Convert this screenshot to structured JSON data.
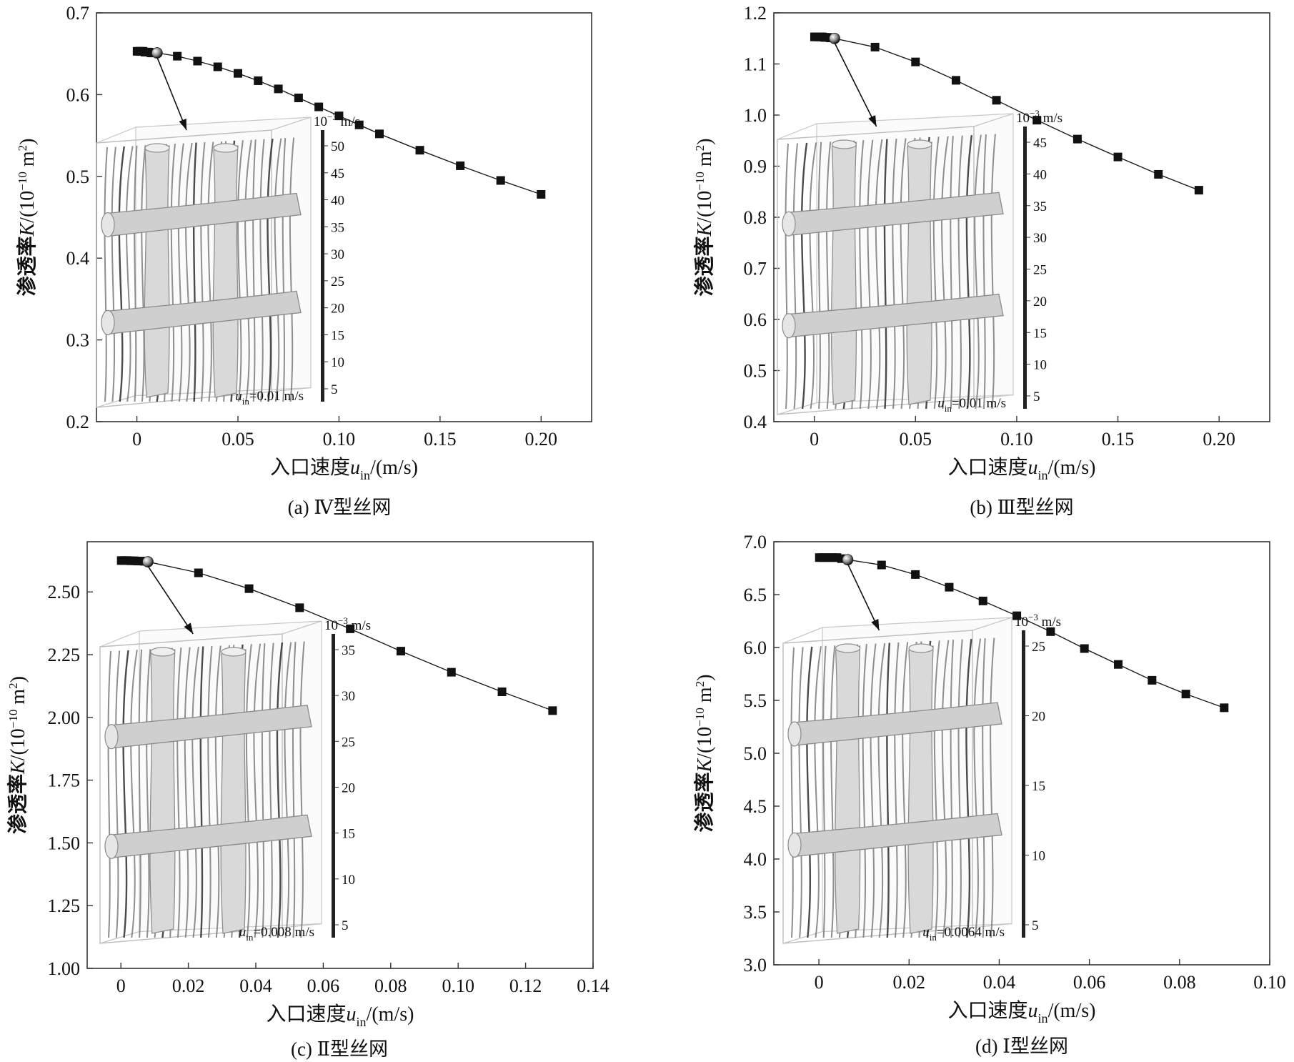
{
  "figure": {
    "colors": {
      "axis": "#333333",
      "line": "#1a1a1a",
      "marker": "#111111",
      "wire": "#b8b8b8",
      "streamline": "#7a7a7a"
    }
  },
  "chart_data": [
    {
      "id": "a",
      "type": "line",
      "caption": "(a) Ⅳ型丝网",
      "xlabel": {
        "main": "入口速度",
        "var": "u",
        "sub": "in",
        "unit": "/(m/s)"
      },
      "ylabel": {
        "main": "渗透率",
        "var": "K",
        "unit": "/(10",
        "exp": "−10",
        "unit2": " m",
        "exp2": "2",
        "close": ")"
      },
      "xlim": [
        -0.02,
        0.225
      ],
      "ylim": [
        0.2,
        0.7
      ],
      "xticks": [
        0,
        0.05,
        0.1,
        0.15,
        0.2
      ],
      "xtick_labels": [
        "0",
        "0.05",
        "0.10",
        "0.15",
        "0.20"
      ],
      "yticks": [
        0.2,
        0.3,
        0.4,
        0.5,
        0.6,
        0.7
      ],
      "ytick_labels": [
        "0.2",
        "0.3",
        "0.4",
        "0.5",
        "0.6",
        "0.7"
      ],
      "x": [
        0.0001,
        0.001,
        0.002,
        0.003,
        0.004,
        0.005,
        0.006,
        0.007,
        0.008,
        0.01,
        0.02,
        0.03,
        0.04,
        0.05,
        0.06,
        0.07,
        0.08,
        0.09,
        0.1,
        0.11,
        0.12,
        0.14,
        0.16,
        0.18,
        0.2
      ],
      "y": [
        0.653,
        0.653,
        0.653,
        0.653,
        0.652,
        0.652,
        0.652,
        0.651,
        0.651,
        0.651,
        0.647,
        0.641,
        0.634,
        0.626,
        0.617,
        0.607,
        0.596,
        0.585,
        0.574,
        0.563,
        0.552,
        0.532,
        0.513,
        0.495,
        0.478
      ],
      "highlight_x": 0.01,
      "inset": {
        "colorbar_unit": "10",
        "colorbar_exp": "−3",
        "colorbar_unit2": " m/s",
        "ticks": [
          "50",
          "45",
          "40",
          "35",
          "30",
          "25",
          "20",
          "15",
          "10",
          "5"
        ],
        "velocity_var": "u",
        "velocity_sub": "in",
        "velocity_value": "=0.01 m/s"
      }
    },
    {
      "id": "b",
      "type": "line",
      "caption": "(b) Ⅲ型丝网",
      "xlabel": {
        "main": "入口速度",
        "var": "u",
        "sub": "in",
        "unit": "/(m/s)"
      },
      "ylabel": {
        "main": "渗透率",
        "var": "K",
        "unit": "/(10",
        "exp": "−10",
        "unit2": " m",
        "exp2": "2",
        "close": ")"
      },
      "xlim": [
        -0.02,
        0.225
      ],
      "ylim": [
        0.4,
        1.2
      ],
      "xticks": [
        0,
        0.05,
        0.1,
        0.15,
        0.2
      ],
      "xtick_labels": [
        "0",
        "0.05",
        "0.10",
        "0.15",
        "0.20"
      ],
      "yticks": [
        0.4,
        0.5,
        0.6,
        0.7,
        0.8,
        0.9,
        1.0,
        1.1,
        1.2
      ],
      "ytick_labels": [
        "0.4",
        "0.5",
        "0.6",
        "0.7",
        "0.8",
        "0.9",
        "1.0",
        "1.1",
        "1.2"
      ],
      "x": [
        0.0001,
        0.001,
        0.002,
        0.003,
        0.004,
        0.005,
        0.006,
        0.007,
        0.008,
        0.01,
        0.03,
        0.05,
        0.07,
        0.09,
        0.11,
        0.13,
        0.15,
        0.17,
        0.19
      ],
      "y": [
        1.153,
        1.153,
        1.153,
        1.153,
        1.153,
        1.152,
        1.152,
        1.152,
        1.151,
        1.15,
        1.133,
        1.104,
        1.068,
        1.029,
        0.99,
        0.953,
        0.918,
        0.884,
        0.853
      ],
      "highlight_x": 0.01,
      "inset": {
        "colorbar_unit": "10",
        "colorbar_exp": "−3",
        "colorbar_unit2": " m/s",
        "ticks": [
          "45",
          "40",
          "35",
          "30",
          "25",
          "20",
          "15",
          "10",
          "5"
        ],
        "velocity_var": "u",
        "velocity_sub": "in",
        "velocity_value": "=0.01 m/s"
      }
    },
    {
      "id": "c",
      "type": "line",
      "caption": "(c) Ⅱ型丝网",
      "xlabel": {
        "main": "入口速度",
        "var": "u",
        "sub": "in",
        "unit": "/(m/s)"
      },
      "ylabel": {
        "main": "渗透率",
        "var": "K",
        "unit": "/(10",
        "exp": "−10",
        "unit2": " m",
        "exp2": "2",
        "close": ")"
      },
      "xlim": [
        -0.01,
        0.14
      ],
      "ylim": [
        1.0,
        2.7
      ],
      "xticks": [
        0,
        0.02,
        0.04,
        0.06,
        0.08,
        0.1,
        0.12,
        0.14
      ],
      "xtick_labels": [
        "0",
        "0.02",
        "0.04",
        "0.06",
        "0.08",
        "0.10",
        "0.12",
        "0.14"
      ],
      "yticks": [
        1.0,
        1.25,
        1.5,
        1.75,
        2.0,
        2.25,
        2.5
      ],
      "ytick_labels": [
        "1.00",
        "1.25",
        "1.50",
        "1.75",
        "2.00",
        "2.25",
        "2.50"
      ],
      "x": [
        0.0001,
        0.001,
        0.002,
        0.003,
        0.004,
        0.005,
        0.006,
        0.007,
        0.008,
        0.023,
        0.038,
        0.053,
        0.068,
        0.083,
        0.098,
        0.113,
        0.128
      ],
      "y": [
        2.625,
        2.625,
        2.625,
        2.624,
        2.624,
        2.623,
        2.623,
        2.622,
        2.62,
        2.576,
        2.513,
        2.437,
        2.353,
        2.264,
        2.18,
        2.102,
        2.027
      ],
      "highlight_x": 0.008,
      "inset": {
        "colorbar_unit": "10",
        "colorbar_exp": "−3",
        "colorbar_unit2": " m/s",
        "ticks": [
          "35",
          "30",
          "25",
          "20",
          "15",
          "10",
          "5"
        ],
        "velocity_var": "u",
        "velocity_sub": "in",
        "velocity_value": "=0.008 m/s"
      }
    },
    {
      "id": "d",
      "type": "line",
      "caption": "(d) Ⅰ型丝网",
      "xlabel": {
        "main": "入口速度",
        "var": "u",
        "sub": "in",
        "unit": "/(m/s)"
      },
      "ylabel": {
        "main": "渗透率",
        "var": "K",
        "unit": "/(10",
        "exp": "−10",
        "unit2": " m",
        "exp2": "2",
        "close": ")"
      },
      "xlim": [
        -0.01,
        0.1
      ],
      "ylim": [
        3.0,
        7.0
      ],
      "xticks": [
        0,
        0.02,
        0.04,
        0.06,
        0.08,
        0.1
      ],
      "xtick_labels": [
        "0",
        "0.02",
        "0.04",
        "0.06",
        "0.08",
        "0.10"
      ],
      "yticks": [
        3.0,
        3.5,
        4.0,
        4.5,
        5.0,
        5.5,
        6.0,
        6.5,
        7.0
      ],
      "ytick_labels": [
        "3.0",
        "3.5",
        "4.0",
        "4.5",
        "5.0",
        "5.5",
        "6.0",
        "6.5",
        "7.0"
      ],
      "x": [
        0.0001,
        0.001,
        0.002,
        0.003,
        0.004,
        0.005,
        0.0064,
        0.0139,
        0.0214,
        0.0289,
        0.0364,
        0.0439,
        0.0514,
        0.0589,
        0.0664,
        0.0739,
        0.0814,
        0.0899
      ],
      "y": [
        6.85,
        6.85,
        6.85,
        6.85,
        6.85,
        6.84,
        6.83,
        6.78,
        6.69,
        6.57,
        6.44,
        6.3,
        6.15,
        5.99,
        5.84,
        5.69,
        5.56,
        5.43
      ],
      "highlight_x": 0.0064,
      "inset": {
        "colorbar_unit": "10",
        "colorbar_exp": "−3",
        "colorbar_unit2": " m/s",
        "ticks": [
          "25",
          "20",
          "15",
          "10",
          "5"
        ],
        "velocity_var": "u",
        "velocity_sub": "in",
        "velocity_value": "=0.0064 m/s"
      }
    }
  ]
}
